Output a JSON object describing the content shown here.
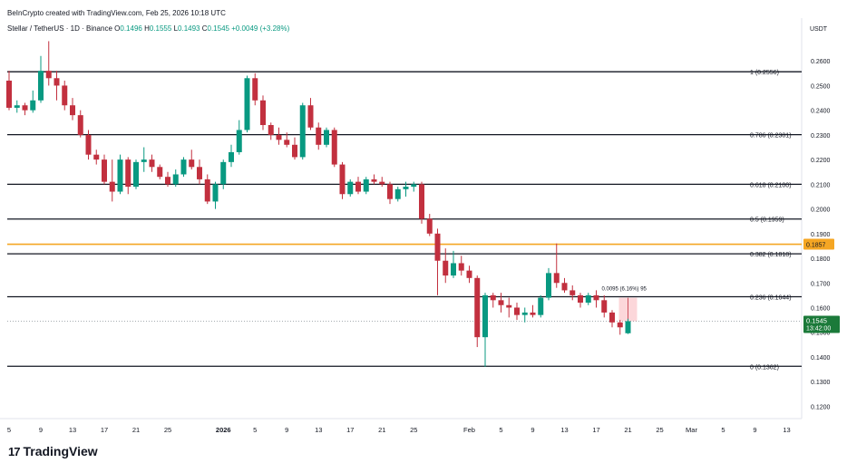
{
  "header": {
    "created_by": "BeInCrypto created with TradingView.com, Feb 25, 2026 10:18 UTC",
    "symbol": "Stellar / TetherUS · 1D · Binance",
    "ohlc": {
      "O": "0.1496",
      "H": "0.1555",
      "L": "0.1493",
      "C": "0.1545",
      "change": "+0.0049 (+3.28%)"
    }
  },
  "axis_unit": "USDT",
  "brand": {
    "name": "TradingView",
    "logo_glyph": "17"
  },
  "colors": {
    "up": "#089981",
    "down": "#c2303f",
    "fib": "#131722",
    "resistance": "#f5a623",
    "badge_bg": "#1b7a3a"
  },
  "price_badge": {
    "price": "0.1545",
    "countdown": "13:42:00"
  },
  "resistance": {
    "value": 0.1857,
    "label": "0.1857"
  },
  "measure": {
    "label": "0.0095 (6.16%) 95",
    "from": 0.1545,
    "to": 0.164
  },
  "chart_data": {
    "type": "candlestick",
    "yaxis": {
      "min": 0.115,
      "max": 0.27,
      "ticks": [
        0.26,
        0.25,
        0.24,
        0.23,
        0.22,
        0.21,
        0.2,
        0.19,
        0.18,
        0.17,
        0.16,
        0.15,
        0.14,
        0.13,
        0.12
      ]
    },
    "x_labels": [
      {
        "label": "5",
        "i": 0
      },
      {
        "label": "9",
        "i": 4
      },
      {
        "label": "13",
        "i": 8
      },
      {
        "label": "17",
        "i": 12
      },
      {
        "label": "21",
        "i": 16
      },
      {
        "label": "25",
        "i": 20
      },
      {
        "label": "2026",
        "i": 27
      },
      {
        "label": "5",
        "i": 31
      },
      {
        "label": "9",
        "i": 35
      },
      {
        "label": "13",
        "i": 39
      },
      {
        "label": "17",
        "i": 43
      },
      {
        "label": "21",
        "i": 47
      },
      {
        "label": "25",
        "i": 51
      },
      {
        "label": "Feb",
        "i": 58
      },
      {
        "label": "5",
        "i": 62
      },
      {
        "label": "9",
        "i": 66
      },
      {
        "label": "13",
        "i": 70
      },
      {
        "label": "17",
        "i": 74
      },
      {
        "label": "21",
        "i": 78
      },
      {
        "label": "25",
        "i": 82
      },
      {
        "label": "Mar",
        "i": 86
      },
      {
        "label": "5",
        "i": 90
      },
      {
        "label": "9",
        "i": 94
      },
      {
        "label": "13",
        "i": 98
      }
    ],
    "fib_levels": [
      {
        "name": "1",
        "value": 0.2556,
        "label": "1 (0.2556)"
      },
      {
        "name": "0.786",
        "value": 0.2301,
        "label": "0.786 (0.2301)"
      },
      {
        "name": "0.618",
        "value": 0.21,
        "label": "0.618 (0.2100)"
      },
      {
        "name": "0.5",
        "value": 0.1959,
        "label": "0.5 (0.1959)"
      },
      {
        "name": "0.382",
        "value": 0.1818,
        "label": "0.382 (0.1818)"
      },
      {
        "name": "0.236",
        "value": 0.1644,
        "label": "0.236 (0.1644)"
      },
      {
        "name": "0",
        "value": 0.1362,
        "label": "0 (0.1362)"
      }
    ],
    "candles": [
      [
        0.252,
        0.256,
        0.24,
        0.241
      ],
      [
        0.241,
        0.244,
        0.239,
        0.242
      ],
      [
        0.242,
        0.243,
        0.238,
        0.24
      ],
      [
        0.24,
        0.248,
        0.239,
        0.244
      ],
      [
        0.244,
        0.262,
        0.243,
        0.256
      ],
      [
        0.256,
        0.268,
        0.25,
        0.253
      ],
      [
        0.253,
        0.256,
        0.244,
        0.25
      ],
      [
        0.25,
        0.252,
        0.24,
        0.242
      ],
      [
        0.242,
        0.245,
        0.236,
        0.238
      ],
      [
        0.238,
        0.24,
        0.229,
        0.23
      ],
      [
        0.23,
        0.232,
        0.22,
        0.222
      ],
      [
        0.222,
        0.224,
        0.218,
        0.22
      ],
      [
        0.22,
        0.222,
        0.21,
        0.211
      ],
      [
        0.211,
        0.22,
        0.203,
        0.207
      ],
      [
        0.207,
        0.222,
        0.206,
        0.22
      ],
      [
        0.22,
        0.221,
        0.206,
        0.209
      ],
      [
        0.209,
        0.22,
        0.208,
        0.219
      ],
      [
        0.219,
        0.225,
        0.215,
        0.22
      ],
      [
        0.22,
        0.222,
        0.215,
        0.217
      ],
      [
        0.217,
        0.218,
        0.212,
        0.213
      ],
      [
        0.213,
        0.215,
        0.209,
        0.21
      ],
      [
        0.21,
        0.216,
        0.209,
        0.214
      ],
      [
        0.214,
        0.221,
        0.213,
        0.22
      ],
      [
        0.22,
        0.224,
        0.216,
        0.217
      ],
      [
        0.217,
        0.22,
        0.21,
        0.212
      ],
      [
        0.212,
        0.214,
        0.202,
        0.203
      ],
      [
        0.203,
        0.211,
        0.2,
        0.21
      ],
      [
        0.21,
        0.22,
        0.208,
        0.219
      ],
      [
        0.219,
        0.226,
        0.217,
        0.223
      ],
      [
        0.223,
        0.236,
        0.222,
        0.232
      ],
      [
        0.232,
        0.254,
        0.231,
        0.253
      ],
      [
        0.253,
        0.255,
        0.242,
        0.244
      ],
      [
        0.244,
        0.246,
        0.232,
        0.234
      ],
      [
        0.234,
        0.235,
        0.228,
        0.23
      ],
      [
        0.23,
        0.233,
        0.226,
        0.228
      ],
      [
        0.228,
        0.231,
        0.225,
        0.226
      ],
      [
        0.226,
        0.229,
        0.22,
        0.221
      ],
      [
        0.221,
        0.243,
        0.22,
        0.242
      ],
      [
        0.242,
        0.245,
        0.232,
        0.233
      ],
      [
        0.233,
        0.235,
        0.224,
        0.226
      ],
      [
        0.226,
        0.233,
        0.225,
        0.232
      ],
      [
        0.232,
        0.233,
        0.217,
        0.218
      ],
      [
        0.218,
        0.219,
        0.204,
        0.206
      ],
      [
        0.206,
        0.212,
        0.205,
        0.211
      ],
      [
        0.211,
        0.213,
        0.206,
        0.207
      ],
      [
        0.207,
        0.213,
        0.206,
        0.212
      ],
      [
        0.212,
        0.214,
        0.21,
        0.211
      ],
      [
        0.211,
        0.213,
        0.209,
        0.21
      ],
      [
        0.21,
        0.211,
        0.202,
        0.204
      ],
      [
        0.204,
        0.209,
        0.203,
        0.208
      ],
      [
        0.208,
        0.211,
        0.205,
        0.209
      ],
      [
        0.209,
        0.211,
        0.207,
        0.21
      ],
      [
        0.21,
        0.211,
        0.194,
        0.196
      ],
      [
        0.196,
        0.198,
        0.189,
        0.19
      ],
      [
        0.19,
        0.192,
        0.165,
        0.179
      ],
      [
        0.179,
        0.184,
        0.17,
        0.173
      ],
      [
        0.173,
        0.183,
        0.172,
        0.178
      ],
      [
        0.178,
        0.181,
        0.173,
        0.175
      ],
      [
        0.175,
        0.177,
        0.17,
        0.172
      ],
      [
        0.172,
        0.173,
        0.144,
        0.148
      ],
      [
        0.148,
        0.166,
        0.136,
        0.165
      ],
      [
        0.165,
        0.166,
        0.16,
        0.163
      ],
      [
        0.163,
        0.166,
        0.158,
        0.161
      ],
      [
        0.161,
        0.164,
        0.156,
        0.16
      ],
      [
        0.16,
        0.162,
        0.155,
        0.157
      ],
      [
        0.157,
        0.16,
        0.154,
        0.158
      ],
      [
        0.158,
        0.161,
        0.156,
        0.157
      ],
      [
        0.157,
        0.165,
        0.156,
        0.164
      ],
      [
        0.164,
        0.176,
        0.163,
        0.174
      ],
      [
        0.174,
        0.186,
        0.168,
        0.17
      ],
      [
        0.17,
        0.172,
        0.166,
        0.167
      ],
      [
        0.167,
        0.169,
        0.163,
        0.165
      ],
      [
        0.165,
        0.166,
        0.16,
        0.162
      ],
      [
        0.162,
        0.166,
        0.161,
        0.165
      ],
      [
        0.165,
        0.167,
        0.16,
        0.163
      ],
      [
        0.163,
        0.165,
        0.156,
        0.158
      ],
      [
        0.158,
        0.159,
        0.152,
        0.154
      ],
      [
        0.154,
        0.155,
        0.149,
        0.152
      ],
      [
        0.1496,
        0.1555,
        0.1493,
        0.1545
      ]
    ]
  }
}
